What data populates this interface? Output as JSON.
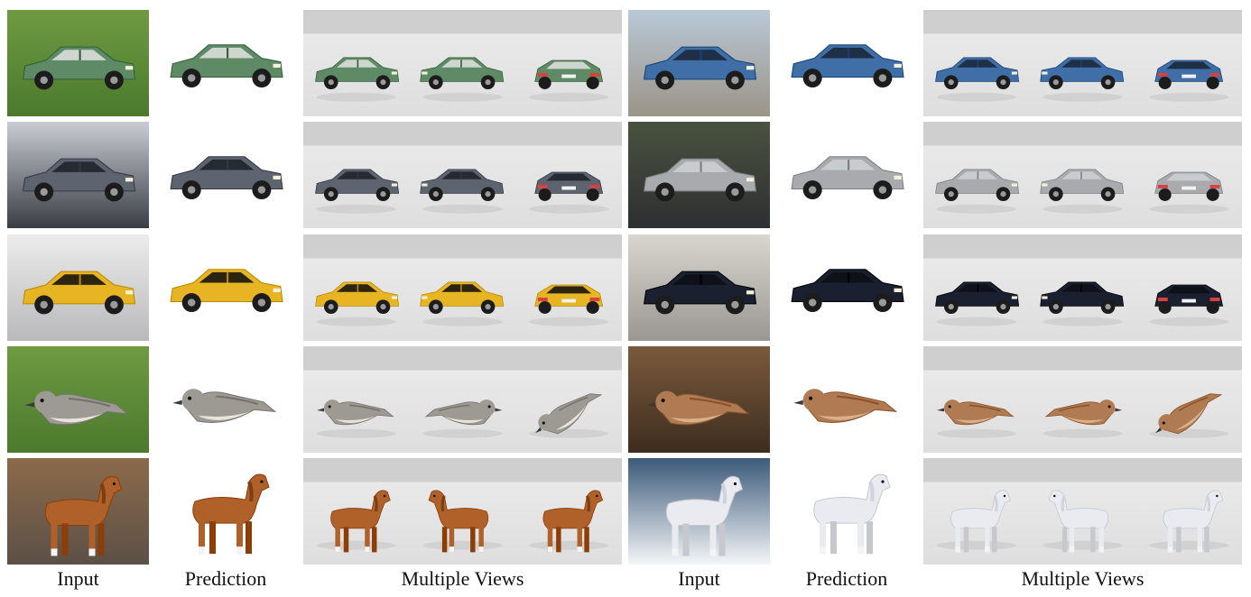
{
  "labels": {
    "left": {
      "input": "Input",
      "prediction": "Prediction",
      "views": "Multiple Views"
    },
    "right": {
      "input": "Input",
      "prediction": "Prediction",
      "views": "Multiple Views"
    }
  },
  "rows": [
    {
      "left": {
        "object": "car",
        "body": "#5f8a66",
        "window": "#cfd6cf",
        "bg": "grass"
      },
      "right": {
        "object": "car",
        "body": "#3f6fa6",
        "window": "#1f2f45",
        "bg": "lot"
      }
    },
    {
      "left": {
        "object": "car",
        "body": "#5d6470",
        "window": "#262b33",
        "bg": "showroom"
      },
      "right": {
        "object": "car",
        "body": "#a8aaad",
        "window": "#c9cccf",
        "bg": "asphalt"
      }
    },
    {
      "left": {
        "object": "car",
        "body": "#e7b423",
        "window": "#2b2410",
        "bg": "studio"
      },
      "right": {
        "object": "car",
        "body": "#1b2030",
        "window": "#0f1118",
        "bg": "street"
      }
    },
    {
      "left": {
        "object": "bird",
        "body": "#9c9a93",
        "belly": "#e8e4da",
        "bg": "grass"
      },
      "right": {
        "object": "bird",
        "body": "#b07b52",
        "belly": "#d9b08a",
        "bg": "branches"
      }
    },
    {
      "left": {
        "object": "horse",
        "body": "#b0612a",
        "mane": "#7a3f15",
        "bg": "paddock"
      },
      "right": {
        "object": "horse",
        "body": "#e9ebf0",
        "mane": "#cfd3db",
        "bg": "snow"
      }
    }
  ]
}
